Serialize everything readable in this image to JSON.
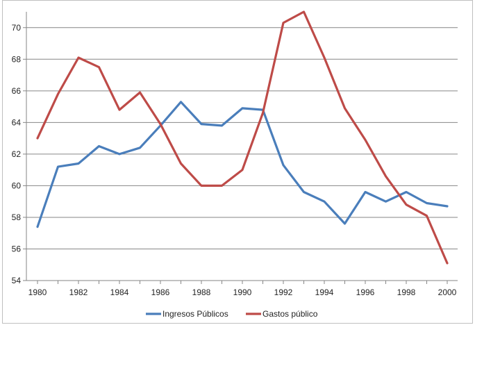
{
  "chart_data": {
    "type": "line",
    "title": "",
    "xlabel": "",
    "ylabel": "",
    "x": [
      1980,
      1981,
      1982,
      1983,
      1984,
      1985,
      1986,
      1987,
      1988,
      1989,
      1990,
      1991,
      1992,
      1993,
      1994,
      1995,
      1996,
      1997,
      1998,
      1999,
      2000
    ],
    "xticks": [
      "1980",
      "1982",
      "1984",
      "1986",
      "1988",
      "1990",
      "1992",
      "1994",
      "1996",
      "1998",
      "2000"
    ],
    "yticks": [
      "54",
      "56",
      "58",
      "60",
      "62",
      "64",
      "66",
      "68",
      "70"
    ],
    "ylim": [
      54,
      71
    ],
    "grid": true,
    "legend_position": "bottom",
    "series": [
      {
        "name": "Ingresos Públicos",
        "color": "#4a7ebb",
        "values": [
          57.4,
          61.2,
          61.4,
          62.5,
          62.0,
          62.4,
          63.8,
          65.3,
          63.9,
          63.8,
          64.9,
          64.8,
          61.3,
          59.6,
          59.0,
          57.6,
          59.6,
          59.0,
          59.6,
          58.9,
          58.7
        ]
      },
      {
        "name": "Gastos público",
        "color": "#be4b48",
        "values": [
          63.0,
          65.8,
          68.1,
          67.5,
          64.8,
          65.9,
          63.9,
          61.4,
          60.0,
          60.0,
          61.0,
          64.6,
          70.3,
          71.0,
          68.1,
          64.9,
          62.9,
          60.6,
          58.8,
          58.1,
          55.1
        ]
      }
    ]
  }
}
